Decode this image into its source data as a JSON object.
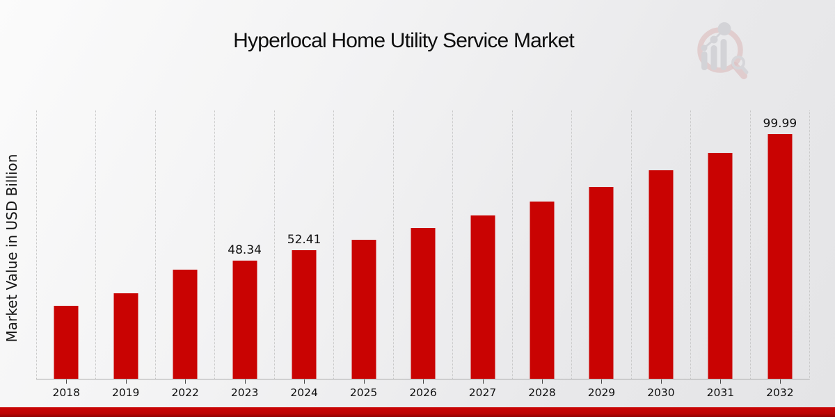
{
  "title": "Hyperlocal Home Utility Service Market",
  "chart_data": {
    "type": "bar",
    "title": "Hyperlocal Home Utility Service Market",
    "xlabel": "",
    "ylabel": "Market Value in USD Billion",
    "categories": [
      "2018",
      "2019",
      "2022",
      "2023",
      "2024",
      "2025",
      "2026",
      "2027",
      "2028",
      "2029",
      "2030",
      "2031",
      "2032"
    ],
    "values": [
      29.8,
      34.8,
      44.59,
      48.34,
      52.41,
      56.82,
      61.6,
      66.78,
      72.4,
      78.49,
      85.09,
      92.25,
      99.99
    ],
    "bar_labels": [
      "",
      "",
      "",
      "48.34",
      "52.41",
      "",
      "",
      "",
      "",
      "",
      "",
      "",
      "99.99"
    ],
    "ylim": [
      0,
      109.6
    ],
    "grid": "vertical dotted gridlines at category boundaries",
    "legend_position": "none",
    "bar_color": "#c90302"
  },
  "colors": {
    "bar": "#c90302",
    "bottom_band": "#bd0303",
    "gridline": "#c6c6c6",
    "background_light": "#fbfbfb",
    "background_dark": "#e4e4e6",
    "logo_pink": "#d5a5a5",
    "logo_gray": "#c2c2c7"
  },
  "logo": {
    "name": "bar-chart-magnifier-watermark"
  }
}
